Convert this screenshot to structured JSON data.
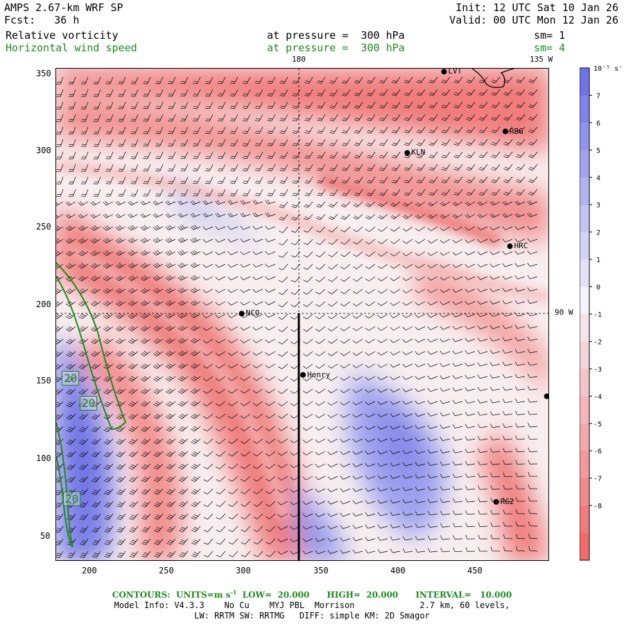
{
  "header": {
    "model": "AMPS 2.67-km WRF SP",
    "fcst_label": "Fcst:",
    "fcst_value": "36 h",
    "init": "Init: 12 UTC Sat 10 Jan 26",
    "valid": "Valid: 00 UTC Mon 12 Jan 26",
    "field1_name": "Relative vorticity",
    "field1_level": "at pressure =  300 hPa",
    "field1_sm": "sm= 1",
    "field2_name": "Horizontal wind speed",
    "field2_level": "at pressure =  300 hPa",
    "field2_sm": "sm= 4",
    "colors": {
      "field2": "#1e8a1e"
    }
  },
  "map": {
    "top_labels": [
      "180",
      "135 W"
    ],
    "right_label": "90 W",
    "x_ticks": [
      "200",
      "250",
      "300",
      "350",
      "400",
      "450"
    ],
    "y_ticks": [
      "350",
      "300",
      "250",
      "200",
      "150",
      "100",
      "50"
    ],
    "x_range": [
      173,
      495
    ],
    "y_range": [
      33,
      355
    ],
    "stations": [
      {
        "name": "LVT",
        "x": 426,
        "y": 353
      },
      {
        "name": "RBG",
        "x": 466,
        "y": 314
      },
      {
        "name": "KLN",
        "x": 402,
        "y": 300
      },
      {
        "name": "HRC",
        "x": 469,
        "y": 239
      },
      {
        "name": "NCO",
        "x": 294,
        "y": 195
      },
      {
        "name": "Henry",
        "x": 334,
        "y": 155
      },
      {
        "name": "",
        "x": 493,
        "y": 141
      },
      {
        "name": "RG2",
        "x": 460,
        "y": 72
      }
    ],
    "contour_labels": [
      "20",
      "20",
      "20"
    ],
    "section_line_x": 334
  },
  "colorbar": {
    "unit": "10⁻⁵ s⁻¹",
    "labels": [
      "7",
      "6",
      "5",
      "4",
      "3",
      "2",
      "1",
      "0",
      "-1",
      "-2",
      "-3",
      "-4",
      "-5",
      "-6",
      "-7",
      "-8"
    ],
    "colors": {
      "positive": "#6f74e6",
      "negative": "#f06c6c",
      "neutral": "#f4f2fb"
    }
  },
  "footer": {
    "contours_label": "CONTOURS:  UNITS=m s",
    "contours_unit_sup": "-1",
    "contours_rest": "  LOW=  20.000      HIGH=  20.000      INTERVAL=   10.000",
    "model_info": "Model Info: V4.3.3    No Cu    MYJ PBL  Morrison             2.7 km, 60 levels,",
    "physics": "LW: RRTM SW: RRTMG   DIFF: simple KM: 2D Smagor",
    "colors": {
      "contours": "#1e8a1e"
    }
  }
}
